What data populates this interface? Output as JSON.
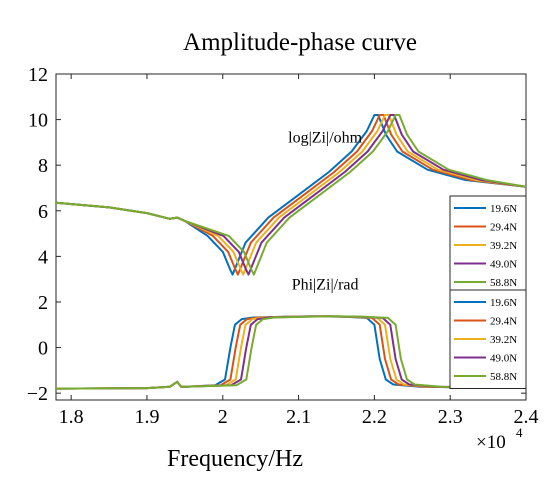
{
  "chart_data": {
    "type": "line",
    "title": "Amplitude-phase curve",
    "xlabel": "Frequency/Hz",
    "ylabel": "",
    "x_exponent_label": "×10",
    "x_exponent_power": "4",
    "xlim": [
      1.78,
      2.4
    ],
    "ylim": [
      -2.3,
      12
    ],
    "xticks": [
      1.8,
      1.9,
      2.0,
      2.1,
      2.2,
      2.3,
      2.4
    ],
    "xtick_labels": [
      "1.8",
      "1.9",
      "2",
      "2.1",
      "2.2",
      "2.3",
      "2.4"
    ],
    "yticks": [
      -2,
      0,
      2,
      4,
      6,
      8,
      10,
      12
    ],
    "ytick_labels": [
      "−2",
      "0",
      "2",
      "4",
      "6",
      "8",
      "10",
      "12"
    ],
    "grid": false,
    "annotations": [
      {
        "text": "log|Zi|/ohm",
        "x": 2.135,
        "y": 9.0
      },
      {
        "text": "Phi|Zi|/rad",
        "x": 2.135,
        "y": 2.55
      }
    ],
    "legend_placement": "right",
    "series": [
      {
        "name": "19.6N",
        "color": "#0072BD",
        "shift": 0.0,
        "amp_x": [
          1.78,
          1.85,
          1.9,
          1.93,
          1.94,
          1.95,
          1.98,
          2.0,
          2.01,
          2.013,
          2.03,
          2.06,
          2.1,
          2.14,
          2.17,
          2.19,
          2.2,
          2.205,
          2.215,
          2.23,
          2.27,
          2.32,
          2.4
        ],
        "amp_y": [
          6.35,
          6.15,
          5.9,
          5.65,
          5.7,
          5.55,
          4.9,
          4.2,
          3.4,
          3.2,
          4.6,
          5.7,
          6.7,
          7.7,
          8.6,
          9.5,
          10.2,
          10.2,
          9.35,
          8.6,
          7.8,
          7.35,
          7.05
        ],
        "phase_x": [
          1.78,
          1.9,
          1.93,
          1.94,
          1.945,
          1.95,
          1.99,
          2.003,
          2.01,
          2.016,
          2.025,
          2.04,
          2.08,
          2.12,
          2.16,
          2.19,
          2.2,
          2.207,
          2.215,
          2.225,
          2.26,
          2.33,
          2.4
        ],
        "phase_y": [
          -1.8,
          -1.78,
          -1.72,
          -1.5,
          -1.72,
          -1.72,
          -1.65,
          -1.4,
          0.0,
          1.0,
          1.25,
          1.32,
          1.35,
          1.37,
          1.35,
          1.3,
          1.0,
          -0.5,
          -1.4,
          -1.62,
          -1.72,
          -1.75,
          -1.75
        ]
      },
      {
        "name": "29.4N",
        "color": "#D95319",
        "shift": 0.007
      },
      {
        "name": "39.2N",
        "color": "#EDB120",
        "shift": 0.014
      },
      {
        "name": "49.0N",
        "color": "#7E2F8E",
        "shift": 0.021
      },
      {
        "name": "58.8N",
        "color": "#77AC30",
        "shift": 0.028
      }
    ]
  }
}
